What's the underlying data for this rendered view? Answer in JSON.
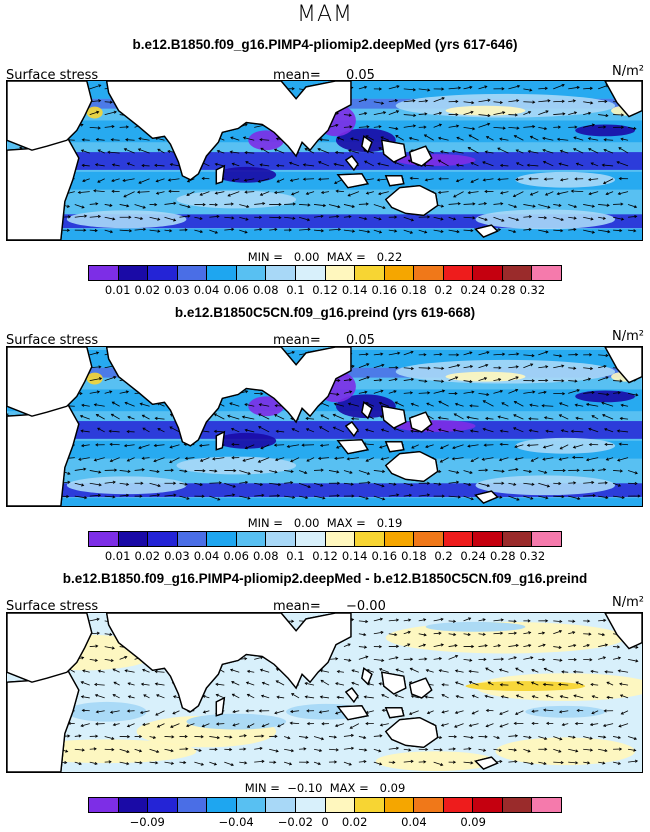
{
  "season": "MAM",
  "colors": [
    "#7d2ee6",
    "#1a0aa6",
    "#2424d6",
    "#4a6ee6",
    "#1ea6f0",
    "#58c0f2",
    "#a8d8f7",
    "#d8f0fb",
    "#fff7be",
    "#f7d533",
    "#f5a600",
    "#f07819",
    "#ee1c1c",
    "#c5000f",
    "#9a2b2b",
    "#f57aac"
  ],
  "land_color": "#ffffff",
  "panels": [
    {
      "title": "b.e12.B1850.f09_g16.PIMP4-pliomip2.deepMed (yrs 617-646)",
      "variable": "Surface stress",
      "mean_label": "mean=",
      "mean_value": "0.05",
      "units": "N/m²",
      "minmax": "MIN =   0.00  MAX =   0.22",
      "ticks": [
        "0.01",
        "0.02",
        "0.03",
        "0.04",
        "0.06",
        "0.08",
        "0.1",
        "0.12",
        "0.14",
        "0.16",
        "0.18",
        "0.2",
        "0.24",
        "0.28",
        "0.32"
      ],
      "kind": "abs1"
    },
    {
      "title": "b.e12.B1850C5CN.f09_g16.preind (yrs 619-668)",
      "variable": "Surface stress",
      "mean_label": "mean=",
      "mean_value": "0.05",
      "units": "N/m²",
      "minmax": "MIN =   0.00  MAX =   0.19",
      "ticks": [
        "0.01",
        "0.02",
        "0.03",
        "0.04",
        "0.06",
        "0.08",
        "0.1",
        "0.12",
        "0.14",
        "0.16",
        "0.18",
        "0.2",
        "0.24",
        "0.28",
        "0.32"
      ],
      "kind": "abs2"
    },
    {
      "title": "b.e12.B1850.f09_g16.PIMP4-pliomip2.deepMed - b.e12.B1850C5CN.f09_g16.preind",
      "variable": "Surface stress",
      "mean_label": "mean=",
      "mean_value": "−0.00",
      "units": "N/m²",
      "minmax": "MIN =  −0.10  MAX =   0.09",
      "ticks": [
        "−0.09",
        "−0.04",
        "−0.02",
        "0",
        "0.02",
        "0.04",
        "0.09"
      ],
      "kind": "diff"
    }
  ],
  "chart_data": [
    {
      "type": "heatmap",
      "title": "b.e12.B1850.f09_g16.PIMP4-pliomip2.deepMed (yrs 617-646)",
      "variable": "Surface stress",
      "units": "N/m²",
      "mean": 0.05,
      "min": 0.0,
      "max": 0.22,
      "colorbar_levels": [
        0.01,
        0.02,
        0.03,
        0.04,
        0.06,
        0.08,
        0.1,
        0.12,
        0.14,
        0.16,
        0.18,
        0.2,
        0.24,
        0.28,
        0.32
      ]
    },
    {
      "type": "heatmap",
      "title": "b.e12.B1850C5CN.f09_g16.preind (yrs 619-668)",
      "variable": "Surface stress",
      "units": "N/m²",
      "mean": 0.05,
      "min": 0.0,
      "max": 0.19,
      "colorbar_levels": [
        0.01,
        0.02,
        0.03,
        0.04,
        0.06,
        0.08,
        0.1,
        0.12,
        0.14,
        0.16,
        0.18,
        0.2,
        0.24,
        0.28,
        0.32
      ]
    },
    {
      "type": "heatmap",
      "title": "b.e12.B1850.f09_g16.PIMP4-pliomip2.deepMed - b.e12.B1850C5CN.f09_g16.preind",
      "variable": "Surface stress",
      "units": "N/m²",
      "mean": -0.0,
      "min": -0.1,
      "max": 0.09,
      "colorbar_levels": [
        -0.09,
        -0.04,
        -0.02,
        0,
        0.02,
        0.04,
        0.09
      ]
    }
  ]
}
